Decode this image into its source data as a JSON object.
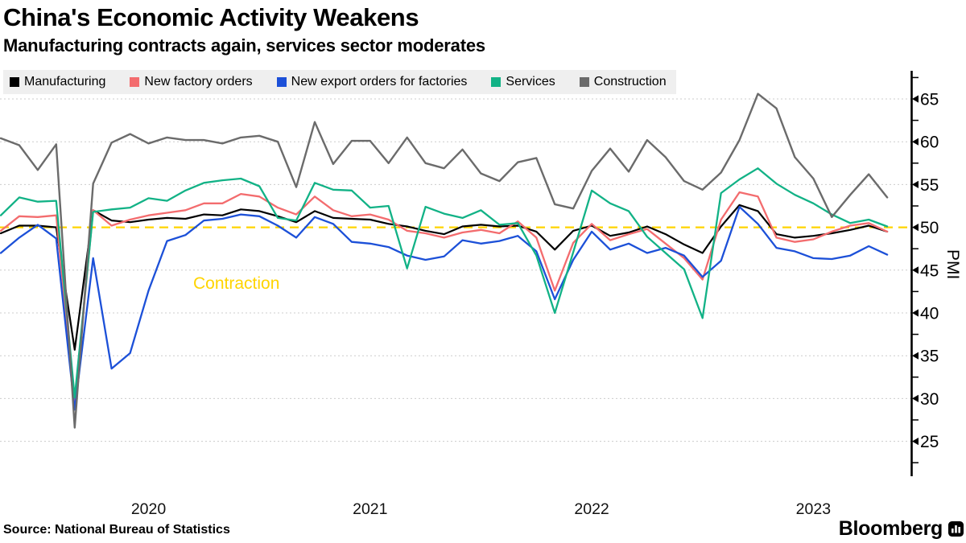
{
  "header": {
    "title": "China's Economic Activity Weakens",
    "subtitle": "Manufacturing contracts again, services sector moderates"
  },
  "plot": {
    "contraction_label": "Contraction",
    "y_axis_title": "PMI"
  },
  "footer": {
    "source": "Source: National Bureau of Statistics",
    "brand": "Bloomberg"
  },
  "colors": {
    "manufacturing": "#000000",
    "new_factory_orders": "#f36c6e",
    "new_export_orders": "#1c50d8",
    "services": "#12b286",
    "construction": "#6b6b6b",
    "threshold": "#ffd400",
    "gridline": "#cccccc",
    "legend_background": "#efefef"
  },
  "chart_data": {
    "type": "line",
    "title": "China's Economic Activity Weakens",
    "subtitle": "Manufacturing contracts again, services sector moderates",
    "x_unit": "month",
    "x_start": "2019-10",
    "x_end": "2023-10",
    "x_tick_labels": [
      "2020",
      "2021",
      "2022",
      "2023"
    ],
    "xlabel": "",
    "ylabel": "PMI",
    "ylim": [
      22.5,
      67.5
    ],
    "yticks": [
      25,
      30,
      35,
      40,
      45,
      50,
      55,
      60,
      65
    ],
    "grid": true,
    "legend_position": "top",
    "reference_line": {
      "value": 50,
      "label": "Contraction",
      "color": "#ffd400"
    },
    "series": [
      {
        "name": "Manufacturing",
        "color": "#000000",
        "values": [
          49.3,
          50.2,
          50.2,
          50.0,
          35.7,
          52.0,
          50.8,
          50.6,
          50.9,
          51.1,
          51.0,
          51.5,
          51.4,
          52.1,
          51.9,
          51.3,
          50.6,
          51.9,
          51.1,
          51.0,
          50.9,
          50.4,
          50.1,
          49.6,
          49.2,
          50.1,
          50.3,
          50.1,
          50.2,
          49.5,
          47.4,
          49.6,
          50.2,
          49.0,
          49.4,
          50.1,
          49.2,
          48.0,
          47.0,
          50.1,
          52.6,
          51.9,
          49.2,
          48.8,
          49.0,
          49.3,
          49.7,
          50.2,
          49.5
        ]
      },
      {
        "name": "New factory orders",
        "color": "#f36c6e",
        "values": [
          49.6,
          51.3,
          51.2,
          51.4,
          29.3,
          52.0,
          50.2,
          50.9,
          51.4,
          51.7,
          52.0,
          52.8,
          52.8,
          53.9,
          53.6,
          52.3,
          51.5,
          53.6,
          52.0,
          51.3,
          51.5,
          50.9,
          49.6,
          49.3,
          48.8,
          49.4,
          49.7,
          49.3,
          50.7,
          48.8,
          42.6,
          48.2,
          50.4,
          48.5,
          49.2,
          49.8,
          48.1,
          46.4,
          43.9,
          50.9,
          54.1,
          53.6,
          48.8,
          48.3,
          48.6,
          49.5,
          50.2,
          50.5,
          49.5
        ]
      },
      {
        "name": "New export orders for factories",
        "color": "#1c50d8",
        "values": [
          47.0,
          48.8,
          50.3,
          48.7,
          28.7,
          46.4,
          33.5,
          35.3,
          42.6,
          48.4,
          49.1,
          50.8,
          51.0,
          51.5,
          51.3,
          50.2,
          48.8,
          51.2,
          50.4,
          48.3,
          48.1,
          47.7,
          46.7,
          46.2,
          46.6,
          48.5,
          48.1,
          48.4,
          49.0,
          47.2,
          41.6,
          46.2,
          49.5,
          47.4,
          48.1,
          47.0,
          47.6,
          46.7,
          44.2,
          46.1,
          52.4,
          50.4,
          47.6,
          47.2,
          46.4,
          46.3,
          46.7,
          47.8,
          46.8
        ]
      },
      {
        "name": "Services",
        "color": "#12b286",
        "values": [
          51.4,
          53.5,
          53.0,
          53.1,
          30.1,
          51.8,
          52.1,
          52.3,
          53.4,
          53.1,
          54.3,
          55.2,
          55.5,
          55.7,
          54.8,
          51.1,
          50.8,
          55.2,
          54.4,
          54.3,
          52.3,
          52.5,
          45.2,
          52.4,
          51.6,
          51.1,
          52.0,
          50.3,
          50.5,
          46.7,
          40.0,
          47.1,
          54.3,
          52.8,
          51.9,
          48.9,
          47.0,
          45.1,
          39.4,
          54.0,
          55.6,
          56.9,
          55.1,
          53.8,
          52.8,
          51.5,
          50.5,
          50.9,
          50.1
        ]
      },
      {
        "name": "Construction",
        "color": "#6b6b6b",
        "values": [
          60.4,
          59.6,
          56.7,
          59.7,
          26.6,
          55.1,
          59.9,
          60.9,
          59.8,
          60.5,
          60.2,
          60.2,
          59.8,
          60.5,
          60.7,
          60.0,
          54.7,
          62.3,
          57.4,
          60.1,
          60.1,
          57.5,
          60.5,
          57.5,
          56.9,
          59.1,
          56.3,
          55.4,
          57.6,
          58.1,
          52.7,
          52.2,
          56.6,
          59.2,
          56.5,
          60.2,
          58.2,
          55.4,
          54.4,
          56.4,
          60.2,
          65.6,
          63.9,
          58.2,
          55.7,
          51.2,
          53.8,
          56.2,
          53.5
        ]
      }
    ]
  }
}
